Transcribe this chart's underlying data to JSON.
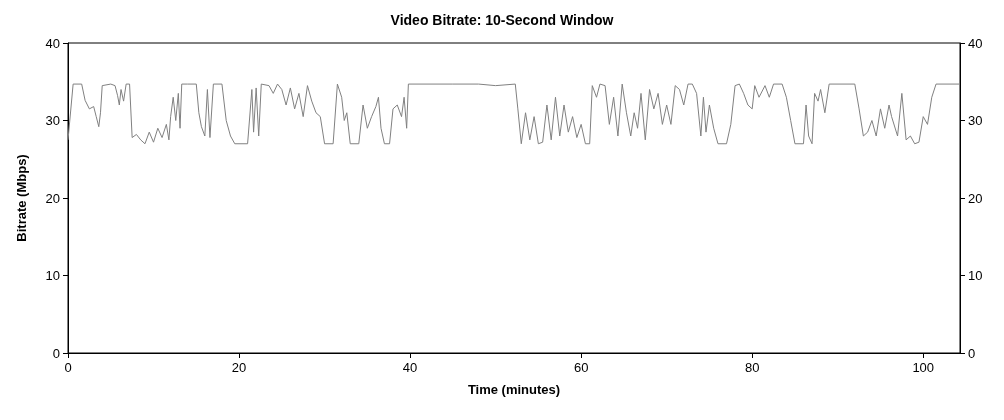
{
  "chart_data": {
    "type": "line",
    "title": "Video Bitrate: 10-Second Window",
    "xlabel": "Time (minutes)",
    "ylabel": "Bitrate (Mbps)",
    "xlim": [
      0,
      104.3
    ],
    "xticks": [
      0,
      20,
      40,
      60,
      80,
      100
    ],
    "ylim": [
      0,
      40
    ],
    "yticks": [
      0,
      10,
      20,
      30,
      40
    ],
    "y2lim": [
      0,
      40
    ],
    "y2ticks": [
      0,
      10,
      20,
      30,
      40
    ],
    "grid": false,
    "marker": "none",
    "line_style": "solid",
    "series": [
      {
        "color": "#808080",
        "x": [
          0,
          0.6,
          1.6,
          2.0,
          2.5,
          3.0,
          3.3,
          3.6,
          3.8,
          4.0,
          5.0,
          5.5,
          5.8,
          6.0,
          6.2,
          6.5,
          6.8,
          7.2,
          7.5,
          8.0,
          8.5,
          9.0,
          9.5,
          10.0,
          10.5,
          11.0,
          11.5,
          11.8,
          12.0,
          12.3,
          12.6,
          12.9,
          13.1,
          13.3,
          14.0,
          15.0,
          15.3,
          15.6,
          16.0,
          16.3,
          16.6,
          17.0,
          18.0,
          18.5,
          19.0,
          19.5,
          21.0,
          21.5,
          21.7,
          22.0,
          22.3,
          22.6,
          23.5,
          24.0,
          24.5,
          25.0,
          25.5,
          26.0,
          26.5,
          27.0,
          27.5,
          28.0,
          28.5,
          29.0,
          29.5,
          30.0,
          31.0,
          31.5,
          32.0,
          32.3,
          32.6,
          33.0,
          34.0,
          34.5,
          35.0,
          35.5,
          36.0,
          36.3,
          36.6,
          37.0,
          37.6,
          38.0,
          38.5,
          39.0,
          39.3,
          39.6,
          39.8,
          45,
          48,
          50,
          52.3,
          52.6,
          53.0,
          53.5,
          54,
          54.5,
          55,
          55.5,
          56,
          56.5,
          57,
          57.5,
          58,
          58.5,
          59,
          59.5,
          60,
          60.5,
          61,
          61.3,
          61.8,
          62.2,
          62.8,
          63.3,
          63.8,
          64.3,
          64.8,
          65.3,
          65.8,
          66.2,
          66.6,
          67,
          67.5,
          68,
          68.5,
          69,
          69.5,
          70,
          70.5,
          71,
          71.5,
          72,
          72.5,
          73,
          73.5,
          74,
          74.3,
          74.6,
          75,
          75.5,
          76,
          77,
          77.5,
          78,
          78.5,
          79,
          79.5,
          80,
          80.3,
          80.8,
          81.5,
          82,
          82.5,
          83.5,
          84,
          84.5,
          85,
          86,
          86.3,
          86.6,
          87,
          87.3,
          87.7,
          88,
          88.5,
          89,
          92,
          92.5,
          93,
          93.5,
          94,
          94.5,
          95,
          95.5,
          96,
          96.3,
          97,
          97.5,
          98,
          98.5,
          99,
          99.5,
          100,
          100.5,
          101,
          101.5,
          104.3
        ],
        "values": [
          27.5,
          34.7,
          34.7,
          32.6,
          31.5,
          31.8,
          30.5,
          29.2,
          31.0,
          34.5,
          34.7,
          34.5,
          33.2,
          32.0,
          34.0,
          32.5,
          34.7,
          34.7,
          27.8,
          28.2,
          27.5,
          27.0,
          28.5,
          27.2,
          29.0,
          27.8,
          29.5,
          27.5,
          30.5,
          33.0,
          30.0,
          33.5,
          29.0,
          34.7,
          34.7,
          34.7,
          31.0,
          29.2,
          28.0,
          34.0,
          27.8,
          34.7,
          34.7,
          30.0,
          28.0,
          27.0,
          27.0,
          34.0,
          28.5,
          34.2,
          28.0,
          34.7,
          34.5,
          33.5,
          34.7,
          34.0,
          32.0,
          34.2,
          31.5,
          33.5,
          30.5,
          34.5,
          32.5,
          31.0,
          30.5,
          27.0,
          27.0,
          34.7,
          33.0,
          30.0,
          31.0,
          27.0,
          27.0,
          32.0,
          29.0,
          30.5,
          31.8,
          33.0,
          29.0,
          27.0,
          27.0,
          31.5,
          32.0,
          30.5,
          33.0,
          29.0,
          34.7,
          34.7,
          34.7,
          34.5,
          34.7,
          31.5,
          27.0,
          31.0,
          27.5,
          30.5,
          27.0,
          27.2,
          32.0,
          27.5,
          33.0,
          28.0,
          32.0,
          28.5,
          30.5,
          27.8,
          29.5,
          27.0,
          27.0,
          34.5,
          33.0,
          34.7,
          34.5,
          29.5,
          33.0,
          28.0,
          34.7,
          31.0,
          28.0,
          31.0,
          29.0,
          33.5,
          27.5,
          34.0,
          31.5,
          33.5,
          29.5,
          32.0,
          29.5,
          34.5,
          34.0,
          32.0,
          34.7,
          34.7,
          33.5,
          28.0,
          33.0,
          28.5,
          32.0,
          29.0,
          27.0,
          27.0,
          29.5,
          34.5,
          34.7,
          33.5,
          32.0,
          31.5,
          34.5,
          33.0,
          34.5,
          33.0,
          34.7,
          34.7,
          33.0,
          30.0,
          27.0,
          27.0,
          32.0,
          28.0,
          27.0,
          33.5,
          32.5,
          34.0,
          31.0,
          34.7,
          34.7,
          31.5,
          28.0,
          28.5,
          30.0,
          28.0,
          31.5,
          29.0,
          32.0,
          30.5,
          28.0,
          33.5,
          27.5,
          28.0,
          27.0,
          27.2,
          30.5,
          29.5,
          33.0,
          34.7,
          34.7
        ]
      }
    ]
  }
}
